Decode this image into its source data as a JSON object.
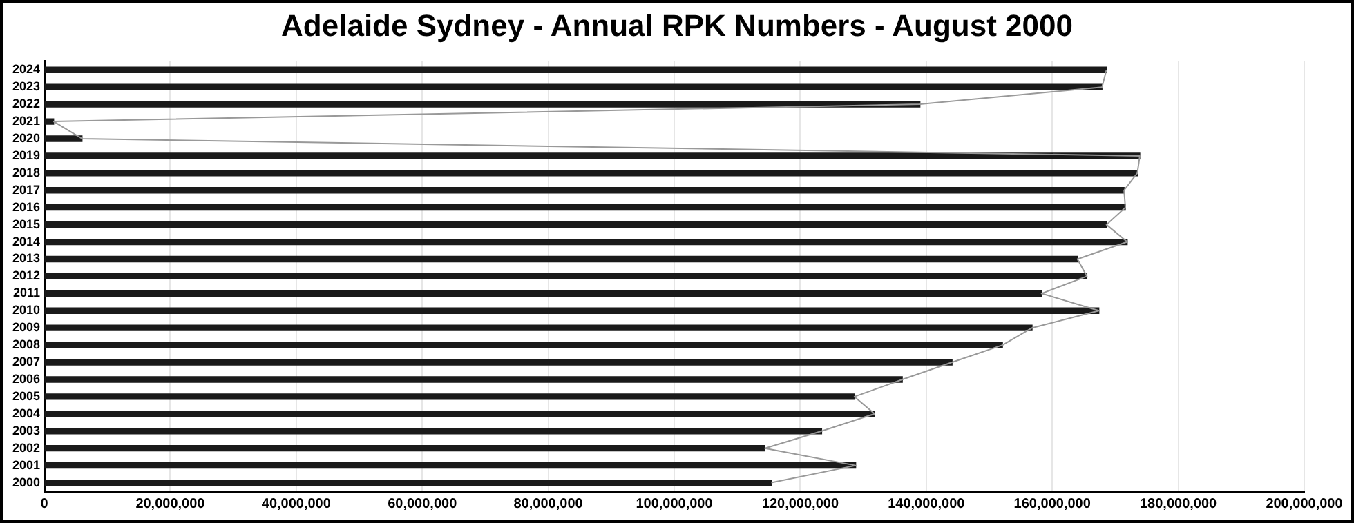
{
  "chart_data": {
    "type": "bar",
    "orientation": "horizontal",
    "title": "Adelaide Sydney - Annual RPK Numbers - August 2000",
    "categories": [
      "2024",
      "2023",
      "2022",
      "2021",
      "2020",
      "2019",
      "2018",
      "2017",
      "2016",
      "2015",
      "2014",
      "2013",
      "2012",
      "2011",
      "2010",
      "2009",
      "2008",
      "2007",
      "2006",
      "2005",
      "2004",
      "2003",
      "2002",
      "2001",
      "2000"
    ],
    "series": [
      {
        "color": "#1a1a1a",
        "values": [
          168600000,
          167900000,
          139000000,
          1500000,
          6000000,
          173900000,
          173500000,
          171400000,
          171600000,
          168600000,
          171900000,
          164000000,
          165500000,
          158300000,
          167400000,
          156800000,
          152100000,
          144100000,
          136200000,
          128600000,
          131800000,
          123400000,
          114400000,
          128800000,
          115400000
        ]
      },
      {
        "type": "line",
        "color": "#999999",
        "values": [
          168600000,
          167900000,
          139000000,
          1500000,
          6000000,
          173900000,
          173500000,
          171400000,
          171600000,
          168600000,
          171900000,
          164000000,
          165500000,
          158300000,
          167400000,
          156800000,
          152100000,
          144100000,
          136200000,
          128600000,
          131800000,
          123400000,
          114400000,
          128800000,
          115400000
        ]
      }
    ],
    "xlim": [
      0,
      200000000
    ],
    "xticks": [
      0,
      {
        "value": 20000000,
        "label": "20,000,000"
      },
      {
        "value": 40000000,
        "label": "40,000,000"
      },
      {
        "value": 60000000,
        "label": "60,000,000"
      },
      {
        "value": 80000000,
        "label": "80,000,000"
      },
      {
        "value": 100000000,
        "label": "100,000,000"
      },
      {
        "value": 120000000,
        "label": "120,000,000"
      },
      {
        "value": 140000000,
        "label": "140,000,000"
      },
      {
        "value": 160000000,
        "label": "160,000,000"
      },
      {
        "value": 180000000,
        "label": "180,000,000"
      },
      {
        "value": 200000000,
        "label": "200,000,000"
      }
    ],
    "grid": "x",
    "legend": false,
    "marker": "none"
  }
}
